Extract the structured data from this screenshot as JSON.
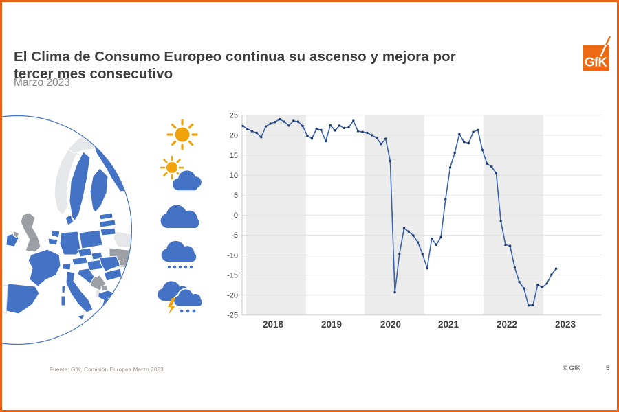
{
  "slide": {
    "title_lines": [
      "El Clima de Consumo Europeo continua su ascenso y mejora por",
      "tercer mes consecutivo"
    ],
    "subtitle": "Marzo 2023",
    "source": "Fuente: GfK, Comisión Europea  Marzo 2023",
    "copyright": "© GfK",
    "page_number": "5",
    "accent_color": "#EC6111"
  },
  "logo": {
    "text": "GfK",
    "box_color": "#ED6A12",
    "text_color": "#FFFFFF"
  },
  "map": {
    "description": "Mapa de Europa recortado en círculo",
    "colors": {
      "member_blue": "#4472C4",
      "non_surveyed_gray": "#9CA0A5",
      "land_light": "#E5E7E9",
      "circle_stroke": "#4472C4"
    }
  },
  "weather_legend": {
    "items": [
      "sunny-icon",
      "sun-cloud-icon",
      "cloud-icon",
      "rain-icon",
      "storm-icon"
    ],
    "sun_color": "#F0A30A",
    "cloud_color": "#4472C4"
  },
  "chart_data": {
    "type": "line",
    "x_start": "2017-07",
    "x_end": "2023-03",
    "frequency": "monthly",
    "values": [
      22.3,
      21.6,
      21.0,
      20.6,
      19.5,
      22.2,
      22.9,
      23.3,
      24.0,
      23.4,
      22.4,
      23.6,
      23.4,
      22.3,
      19.9,
      19.2,
      21.6,
      21.3,
      18.5,
      22.5,
      21.2,
      22.4,
      21.8,
      22.0,
      23.6,
      21.0,
      20.8,
      20.6,
      20.0,
      19.4,
      17.8,
      19.1,
      13.5,
      -19.3,
      -9.7,
      -3.3,
      -4.1,
      -5.1,
      -6.8,
      -9.7,
      -13.3,
      -5.9,
      -7.4,
      -5.5,
      4.0,
      11.9,
      15.6,
      20.3,
      18.3,
      18.0,
      20.8,
      21.3,
      16.3,
      12.9,
      12.1,
      10.5,
      -1.5,
      -7.4,
      -7.7,
      -13.1,
      -16.7,
      -18.3,
      -22.6,
      -22.4,
      -17.4,
      -18.1,
      -17.1,
      -14.9,
      -13.4
    ],
    "ylim": [
      -25,
      25
    ],
    "yticks": [
      25,
      20,
      15,
      10,
      5,
      0,
      -5,
      -10,
      -15,
      -20,
      -25
    ],
    "year_labels": [
      "2018",
      "2019",
      "2020",
      "2021",
      "2022",
      "2023"
    ],
    "shaded_years": [
      "2018",
      "2020",
      "2022"
    ],
    "grid": "horizontal",
    "legend": "none",
    "line_color": "#3A62AD",
    "marker_color": "#1C3A6E",
    "band_color": "#ECECEC",
    "axis_text_color": "#404040",
    "year_text_color": "#3D3D3D"
  }
}
